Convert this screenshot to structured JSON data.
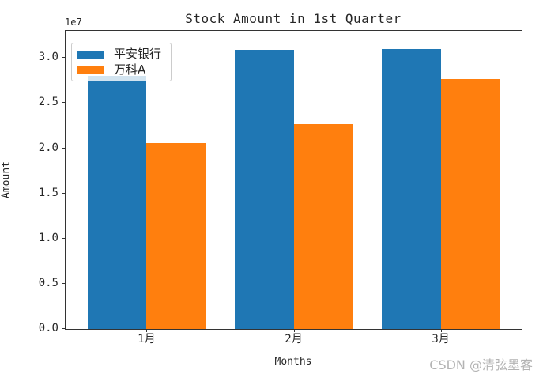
{
  "chart_data": {
    "type": "bar",
    "title": "Stock Amount in 1st Quarter",
    "xlabel": "Months",
    "ylabel": "Amount",
    "y_offset_label": "1e7",
    "categories": [
      "1月",
      "2月",
      "3月"
    ],
    "series": [
      {
        "name": "平安银行",
        "color": "#1f77b4",
        "values": [
          28000000,
          30900000,
          31000000
        ]
      },
      {
        "name": "万科A",
        "color": "#ff7f0e",
        "values": [
          20600000,
          22700000,
          27700000
        ]
      }
    ],
    "ylim": [
      0,
      33000000
    ],
    "yticks": {
      "values": [
        0,
        5000000,
        10000000,
        15000000,
        20000000,
        25000000,
        30000000
      ],
      "labels": [
        "0.0",
        "0.5",
        "1.0",
        "1.5",
        "2.0",
        "2.5",
        "3.0"
      ]
    },
    "grid": false,
    "legend_position": "top-left"
  },
  "watermark": {
    "text": "CSDN @清弦墨客",
    "color": "#b3b3b3"
  }
}
